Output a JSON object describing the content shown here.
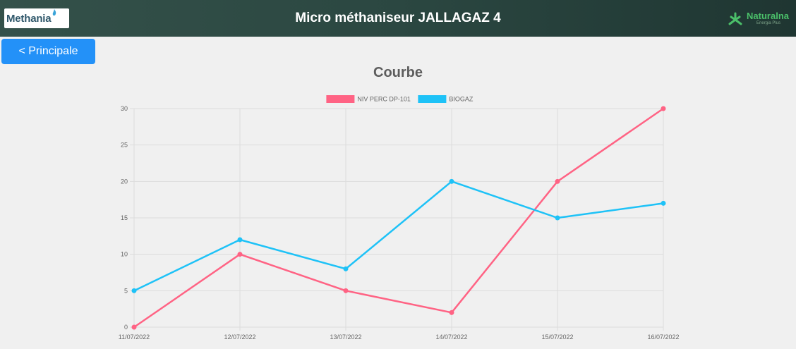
{
  "header": {
    "title": "Micro méthaniseur JALLAGAZ 4",
    "logo_left": "Methania",
    "logo_right_name": "Naturalna",
    "logo_right_sub": "Energia Plus"
  },
  "nav": {
    "back_label": "< Principale"
  },
  "chart_title": "Courbe",
  "colors": {
    "header_bg": "#2b4741",
    "button": "#2391f8",
    "series1": "#ff6384",
    "series2": "#1ec2f7"
  },
  "chart_data": {
    "type": "line",
    "title": "Courbe",
    "xlabel": "",
    "ylabel": "",
    "ylim": [
      0,
      30
    ],
    "yticks": [
      0,
      5,
      10,
      15,
      20,
      25,
      30
    ],
    "grid": true,
    "legend": "top-center",
    "categories": [
      "11/07/2022",
      "12/07/2022",
      "13/07/2022",
      "14/07/2022",
      "15/07/2022",
      "16/07/2022"
    ],
    "series": [
      {
        "name": "NIV PERC DP-101",
        "color": "#ff6384",
        "values": [
          0,
          10,
          5,
          2,
          20,
          30
        ]
      },
      {
        "name": "BIOGAZ",
        "color": "#1ec2f7",
        "values": [
          5,
          12,
          8,
          20,
          15,
          17
        ]
      }
    ]
  }
}
